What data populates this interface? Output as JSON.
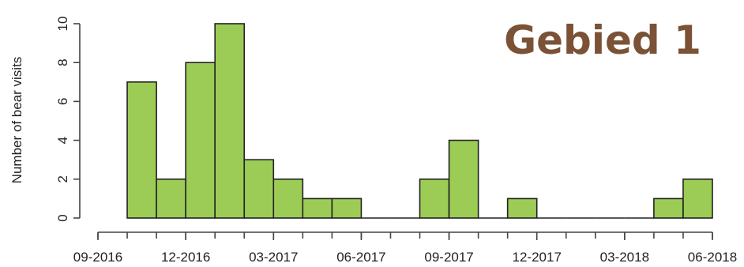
{
  "chart_data": {
    "type": "bar",
    "title": "Gebied 1",
    "xlabel": "",
    "ylabel": "Number of bear visits",
    "ylim": [
      0,
      10
    ],
    "yticks": [
      0,
      2,
      4,
      6,
      8,
      10
    ],
    "xlim": [
      "2016-09",
      "2018-06"
    ],
    "xticks": [
      "09-2016",
      "12-2016",
      "03-2017",
      "06-2017",
      "09-2017",
      "12-2017",
      "03-2018",
      "06-2018"
    ],
    "bars": [
      {
        "start": "2016-10-01",
        "end": "2016-11-01",
        "value": 7
      },
      {
        "start": "2016-11-01",
        "end": "2016-12-01",
        "value": 2
      },
      {
        "start": "2016-12-01",
        "end": "2017-01-01",
        "value": 8
      },
      {
        "start": "2017-01-01",
        "end": "2017-02-01",
        "value": 10
      },
      {
        "start": "2017-02-01",
        "end": "2017-03-01",
        "value": 3
      },
      {
        "start": "2017-03-01",
        "end": "2017-04-01",
        "value": 2
      },
      {
        "start": "2017-04-01",
        "end": "2017-05-01",
        "value": 1
      },
      {
        "start": "2017-05-01",
        "end": "2017-06-01",
        "value": 1
      },
      {
        "start": "2017-06-01",
        "end": "2017-07-01",
        "value": 0
      },
      {
        "start": "2017-07-01",
        "end": "2017-08-01",
        "value": 0
      },
      {
        "start": "2017-08-01",
        "end": "2017-09-01",
        "value": 2
      },
      {
        "start": "2017-09-01",
        "end": "2017-10-01",
        "value": 4
      },
      {
        "start": "2017-10-01",
        "end": "2017-11-01",
        "value": 0
      },
      {
        "start": "2017-11-01",
        "end": "2017-12-01",
        "value": 1
      },
      {
        "start": "2017-12-01",
        "end": "2018-01-01",
        "value": 0
      },
      {
        "start": "2018-01-01",
        "end": "2018-02-01",
        "value": 0
      },
      {
        "start": "2018-02-01",
        "end": "2018-03-01",
        "value": 0
      },
      {
        "start": "2018-03-01",
        "end": "2018-04-01",
        "value": 0
      },
      {
        "start": "2018-04-01",
        "end": "2018-05-01",
        "value": 1
      },
      {
        "start": "2018-05-01",
        "end": "2018-06-01",
        "value": 2
      }
    ],
    "bar_color": "#9ccc55",
    "title_color": "#7b5236",
    "grid": false,
    "legend": "none"
  }
}
